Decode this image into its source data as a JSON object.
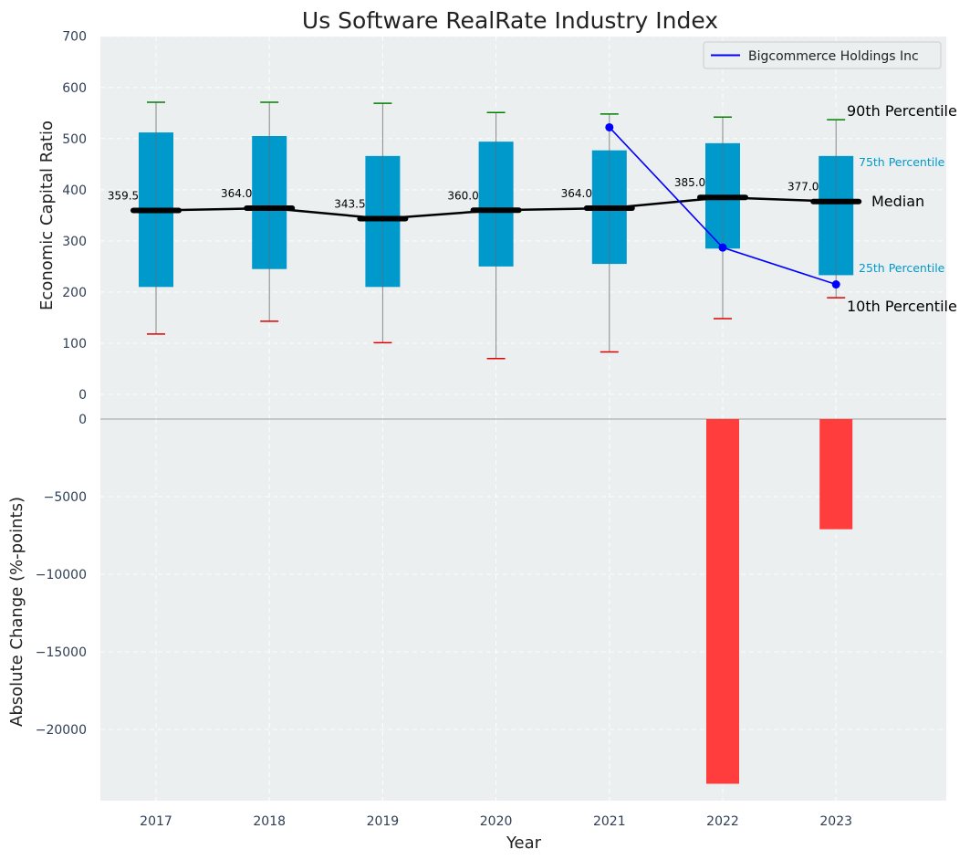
{
  "chart_data": [
    {
      "type": "box",
      "title": "Us Software RealRate Industry Index",
      "ylabel": "Economic Capital Ratio",
      "ylim": [
        -50,
        700
      ],
      "yticks": [
        0,
        100,
        200,
        300,
        400,
        500,
        600,
        700
      ],
      "categories": [
        "2017",
        "2018",
        "2019",
        "2020",
        "2021",
        "2022",
        "2023"
      ],
      "p10": [
        118,
        143,
        101,
        70,
        83,
        148,
        189
      ],
      "p25": [
        210,
        245,
        210,
        250,
        255,
        285,
        233
      ],
      "median": [
        359.5,
        364.0,
        343.5,
        360.0,
        364.0,
        385.0,
        377.0
      ],
      "p75": [
        512,
        505,
        466,
        494,
        477,
        491,
        466
      ],
      "p90": [
        571,
        571,
        569,
        551,
        548,
        542,
        537
      ],
      "median_labels": [
        "359.5",
        "364.0",
        "343.5",
        "360.0",
        "364.0",
        "385.0",
        "377.0"
      ],
      "company_series": {
        "name": "Bigcommerce Holdings Inc",
        "x": [
          "2021",
          "2022",
          "2023"
        ],
        "values": [
          522,
          287,
          215
        ]
      },
      "annotations": {
        "p90": "90th Percentile",
        "p75": "75th Percentile",
        "median": "Median",
        "p25": "25th Percentile",
        "p10": "10th Percentile"
      },
      "legend_position": "top-right"
    },
    {
      "type": "bar",
      "xlabel": "Year",
      "ylabel": "Absolute Change (%-points)",
      "ylim": [
        -24600,
        0
      ],
      "yticks": [
        0,
        -5000,
        -10000,
        -15000,
        -20000
      ],
      "ytick_labels": [
        "0",
        "−5000",
        "−10000",
        "−15000",
        "−20000"
      ],
      "categories": [
        "2017",
        "2018",
        "2019",
        "2020",
        "2021",
        "2022",
        "2023"
      ],
      "values": [
        null,
        null,
        null,
        null,
        null,
        -23500,
        -7100
      ]
    }
  ],
  "colors": {
    "background": "#ebeff0",
    "box": "#0099cc",
    "median_line": "#000000",
    "company": "#0000ff",
    "p90_cap": "#008000",
    "p10_cap": "#e00000",
    "whisker": "#888888",
    "bar": "#ff3d3d"
  }
}
